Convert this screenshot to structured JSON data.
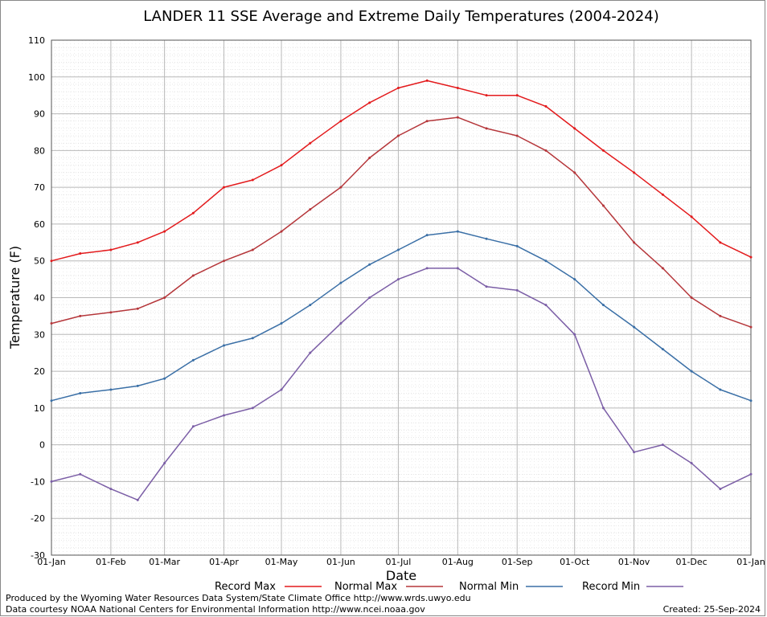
{
  "chart_data": {
    "type": "line",
    "title": "LANDER 11 SSE Average and Extreme Daily Temperatures (2004-2024)",
    "xlabel": "Date",
    "ylabel": "Temperature (F)",
    "ylim": [
      -30,
      110
    ],
    "ytick_labels": [
      "-30",
      "-20",
      "-10",
      "0",
      "10",
      "20",
      "30",
      "40",
      "50",
      "60",
      "70",
      "80",
      "90",
      "100",
      "110"
    ],
    "xlim": [
      1,
      366
    ],
    "xtick_days": [
      1,
      32,
      60,
      91,
      121,
      152,
      182,
      213,
      244,
      274,
      305,
      335,
      366
    ],
    "xtick_labels": [
      "01-Jan",
      "01-Feb",
      "01-Mar",
      "01-Apr",
      "01-May",
      "01-Jun",
      "01-Jul",
      "01-Aug",
      "01-Sep",
      "01-Oct",
      "01-Nov",
      "01-Dec",
      "01-Jan"
    ],
    "grid": true,
    "legend_position": "bottom",
    "x": [
      1,
      16,
      32,
      46,
      60,
      75,
      91,
      106,
      121,
      136,
      152,
      167,
      182,
      197,
      213,
      228,
      244,
      259,
      274,
      289,
      305,
      320,
      335,
      350,
      366
    ],
    "series": [
      {
        "name": "Record Max",
        "color": "#e31a1c",
        "values": [
          50,
          52,
          53,
          55,
          58,
          63,
          70,
          72,
          76,
          82,
          88,
          93,
          97,
          99,
          97,
          95,
          95,
          92,
          86,
          80,
          74,
          68,
          62,
          55,
          51
        ]
      },
      {
        "name": "Normal Max",
        "color": "#b5363a",
        "values": [
          33,
          35,
          36,
          37,
          40,
          46,
          50,
          53,
          58,
          64,
          70,
          78,
          84,
          88,
          89,
          86,
          84,
          80,
          74,
          65,
          55,
          48,
          40,
          35,
          32
        ]
      },
      {
        "name": "Normal Min",
        "color": "#3a6fa6",
        "values": [
          12,
          14,
          15,
          16,
          18,
          23,
          27,
          29,
          33,
          38,
          44,
          49,
          53,
          57,
          58,
          56,
          54,
          50,
          45,
          38,
          32,
          26,
          20,
          15,
          12
        ]
      },
      {
        "name": "Record Min",
        "color": "#7b5ea6",
        "values": [
          -10,
          -8,
          -12,
          -15,
          -5,
          5,
          8,
          10,
          15,
          25,
          33,
          40,
          45,
          48,
          48,
          43,
          42,
          38,
          30,
          10,
          -2,
          0,
          -5,
          -12,
          -8
        ]
      }
    ]
  },
  "legend": {
    "record_max": "Record Max",
    "normal_max": "Normal Max",
    "normal_min": "Normal Min",
    "record_min": "Record Min"
  },
  "footer": {
    "produced_by": "Produced by the Wyoming Water Resources Data System/State Climate Office http://www.wrds.uwyo.edu",
    "courtesy": "Data courtesy NOAA National Centers for Environmental Information http://www.ncei.noaa.gov",
    "created": "Created: 25-Sep-2024"
  },
  "colors": {
    "record_max": "#e31a1c",
    "normal_max": "#b5363a",
    "normal_min": "#3a6fa6",
    "record_min": "#7b5ea6",
    "frame": "#555555",
    "grid_major": "#b8b8b8",
    "grid_minor": "#d9d9d9"
  }
}
